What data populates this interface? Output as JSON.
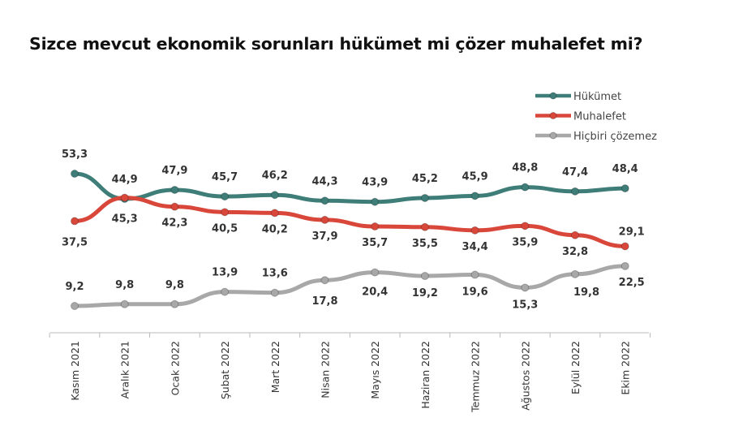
{
  "chart_data": {
    "type": "line",
    "title": "Sizce mevcut ekonomik sorunları hükümet mi çözer muhalefet mi?",
    "xlabel": "",
    "ylabel": "",
    "legend_position": "top-right",
    "grid": false,
    "categories": [
      "Kasım 2021",
      "Aralık 2021",
      "Ocak 2022",
      "Şubat 2022",
      "Mart 2022",
      "Nisan 2022",
      "Mayıs 2022",
      "Haziran 2022",
      "Temmuz 2022",
      "Ağustos 2022",
      "Eylül 2022",
      "Ekim 2022"
    ],
    "series": [
      {
        "name": "Hükümet",
        "color": "#3e7d78",
        "values": [
          53.3,
          44.9,
          47.9,
          45.7,
          46.2,
          44.3,
          43.9,
          45.2,
          45.9,
          48.8,
          47.4,
          48.4
        ],
        "labels": [
          "53,3",
          "44,9",
          "47,9",
          "45,7",
          "46,2",
          "44,3",
          "43,9",
          "45,2",
          "45,9",
          "48,8",
          "47,4",
          "48,4"
        ]
      },
      {
        "name": "Muhalefet",
        "color": "#d9473a",
        "values": [
          37.5,
          45.3,
          42.3,
          40.5,
          40.2,
          37.9,
          35.7,
          35.5,
          34.4,
          35.9,
          32.8,
          29.1
        ],
        "labels": [
          "37,5",
          "45,3",
          "42,3",
          "40,5",
          "40,2",
          "37,9",
          "35,7",
          "35,5",
          "34,4",
          "35,9",
          "32,8",
          "29,1"
        ]
      },
      {
        "name": "Hiçbiri çözemez",
        "color": "#a8a8a8",
        "values": [
          9.2,
          9.8,
          9.8,
          13.9,
          13.6,
          17.8,
          20.4,
          19.2,
          19.6,
          15.3,
          19.8,
          22.5
        ],
        "labels": [
          "9,2",
          "9,8",
          "9,8",
          "13,9",
          "13,6",
          "17,8",
          "20,4",
          "19,2",
          "19,6",
          "15,3",
          "19,8",
          "22,5"
        ]
      }
    ]
  }
}
